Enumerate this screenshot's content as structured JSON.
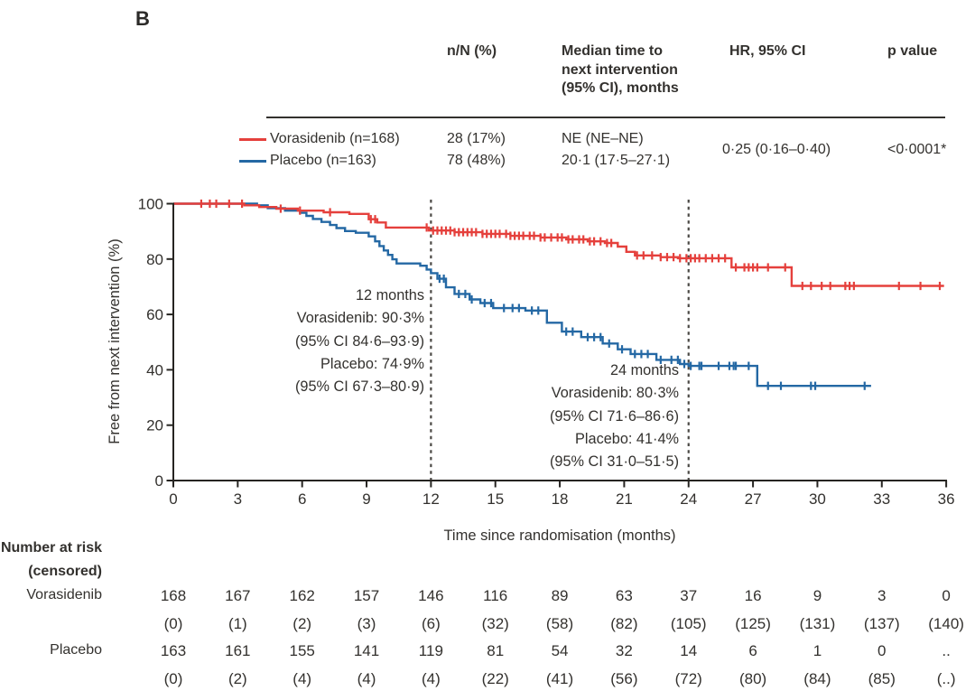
{
  "panel_label": "B",
  "colors": {
    "vorasidenib": "#e5403c",
    "placebo": "#2468a4",
    "text": "#33312e",
    "axis": "#262421",
    "dashed_line": "#4b4945"
  },
  "summary": {
    "col_nn": "n/N (%)",
    "col_median": [
      "Median time to",
      "next intervention",
      "(95% CI), months"
    ],
    "col_hr": "HR, 95% CI",
    "col_p": "p value",
    "rows": [
      {
        "label": "Vorasidenib (n=168)",
        "nn": "28 (17%)",
        "median": "NE (NE–NE)"
      },
      {
        "label": "Placebo (n=163)",
        "nn": "78 (48%)",
        "median": "20·1 (17·5–27·1)"
      }
    ],
    "hr_value": "0·25 (0·16–0·40)",
    "p_value": "<0·0001*"
  },
  "chart_data": {
    "type": "line",
    "subtype": "kaplan-meier-step",
    "title": "",
    "xlabel": "Time since randomisation (months)",
    "ylabel": "Free from next intervention (%)",
    "xlim": [
      0,
      36
    ],
    "ylim": [
      0,
      100
    ],
    "xticks": [
      0,
      3,
      6,
      9,
      12,
      15,
      18,
      21,
      24,
      27,
      30,
      33,
      36
    ],
    "yticks": [
      0,
      20,
      40,
      60,
      80,
      100
    ],
    "grid": false,
    "reference_lines_x": [
      12,
      24
    ],
    "series": [
      {
        "name": "Vorasidenib",
        "color": "#e5403c",
        "steps": [
          [
            0,
            100
          ],
          [
            3.3,
            100
          ],
          [
            3.3,
            99.4
          ],
          [
            4.0,
            99.4
          ],
          [
            4.0,
            98.8
          ],
          [
            4.8,
            98.8
          ],
          [
            4.8,
            98.2
          ],
          [
            5.8,
            98.2
          ],
          [
            5.8,
            97.5
          ],
          [
            7.0,
            97.5
          ],
          [
            7.0,
            96.9
          ],
          [
            8.2,
            96.9
          ],
          [
            8.2,
            96.3
          ],
          [
            9.1,
            96.3
          ],
          [
            9.1,
            94.4
          ],
          [
            9.5,
            94.4
          ],
          [
            9.5,
            93.2
          ],
          [
            9.9,
            93.2
          ],
          [
            9.9,
            91.4
          ],
          [
            11.9,
            91.4
          ],
          [
            11.9,
            90.3
          ],
          [
            13.1,
            90.3
          ],
          [
            13.1,
            89.7
          ],
          [
            14.4,
            89.7
          ],
          [
            14.4,
            89.1
          ],
          [
            15.7,
            89.1
          ],
          [
            15.7,
            88.4
          ],
          [
            17.1,
            88.4
          ],
          [
            17.1,
            87.8
          ],
          [
            18.3,
            87.8
          ],
          [
            18.3,
            87.1
          ],
          [
            19.3,
            87.1
          ],
          [
            19.3,
            86.4
          ],
          [
            20.1,
            86.4
          ],
          [
            20.1,
            85.8
          ],
          [
            20.7,
            85.8
          ],
          [
            20.7,
            84.5
          ],
          [
            21.1,
            84.5
          ],
          [
            21.1,
            82.6
          ],
          [
            21.5,
            82.6
          ],
          [
            21.5,
            81.3
          ],
          [
            22.7,
            81.3
          ],
          [
            22.7,
            80.7
          ],
          [
            23.5,
            80.7
          ],
          [
            23.5,
            80.3
          ],
          [
            26.0,
            80.3
          ],
          [
            26.0,
            77.0
          ],
          [
            28.8,
            77.0
          ],
          [
            28.8,
            70.3
          ],
          [
            35.9,
            70.3
          ]
        ],
        "censor_marks": [
          1.3,
          1.7,
          2.0,
          2.6,
          3.2,
          5.0,
          5.9,
          7.3,
          9.2,
          9.4,
          11.8,
          12.1,
          12.3,
          12.5,
          12.7,
          12.9,
          13.1,
          13.3,
          13.5,
          13.7,
          13.9,
          14.1,
          14.4,
          14.6,
          14.8,
          15.0,
          15.2,
          15.5,
          15.7,
          15.9,
          16.1,
          16.3,
          16.6,
          16.8,
          17.1,
          17.3,
          17.6,
          17.9,
          18.1,
          18.4,
          18.6,
          18.9,
          19.1,
          19.4,
          19.6,
          19.9,
          20.2,
          20.4,
          21.6,
          21.9,
          22.3,
          22.7,
          23.0,
          23.3,
          23.6,
          23.9,
          24.1,
          24.3,
          24.5,
          24.8,
          25.1,
          25.4,
          25.7,
          26.2,
          26.6,
          26.8,
          27.0,
          27.2,
          27.7,
          28.5,
          29.3,
          29.7,
          30.2,
          30.6,
          31.3,
          31.5,
          31.7,
          33.8,
          34.8,
          35.7
        ],
        "value_at_12_months": "90·3% (95% CI 84·6–93·9)",
        "value_at_24_months": "80·3% (95% CI 71·6–86·6)"
      },
      {
        "name": "Placebo",
        "color": "#2468a4",
        "steps": [
          [
            0,
            100
          ],
          [
            3.9,
            100
          ],
          [
            3.9,
            99.4
          ],
          [
            4.4,
            99.4
          ],
          [
            4.4,
            98.4
          ],
          [
            5.2,
            98.4
          ],
          [
            5.2,
            97.5
          ],
          [
            5.9,
            97.5
          ],
          [
            5.9,
            96.7
          ],
          [
            6.2,
            96.7
          ],
          [
            6.2,
            95.6
          ],
          [
            6.5,
            95.6
          ],
          [
            6.5,
            94.5
          ],
          [
            6.9,
            94.5
          ],
          [
            6.9,
            93.4
          ],
          [
            7.3,
            93.4
          ],
          [
            7.3,
            92.3
          ],
          [
            7.6,
            92.3
          ],
          [
            7.6,
            91.2
          ],
          [
            8.0,
            91.2
          ],
          [
            8.0,
            90.1
          ],
          [
            8.5,
            90.1
          ],
          [
            8.5,
            89.5
          ],
          [
            9.1,
            89.5
          ],
          [
            9.1,
            88.2
          ],
          [
            9.4,
            88.2
          ],
          [
            9.4,
            86.4
          ],
          [
            9.6,
            86.4
          ],
          [
            9.6,
            84.7
          ],
          [
            9.8,
            84.7
          ],
          [
            9.8,
            83.1
          ],
          [
            10.0,
            83.1
          ],
          [
            10.0,
            81.5
          ],
          [
            10.2,
            81.5
          ],
          [
            10.2,
            79.9
          ],
          [
            10.4,
            79.9
          ],
          [
            10.4,
            78.4
          ],
          [
            11.5,
            78.4
          ],
          [
            11.5,
            77.6
          ],
          [
            11.8,
            77.6
          ],
          [
            11.8,
            76.2
          ],
          [
            12.0,
            76.2
          ],
          [
            12.0,
            74.9
          ],
          [
            12.3,
            74.9
          ],
          [
            12.3,
            72.9
          ],
          [
            12.7,
            72.9
          ],
          [
            12.7,
            69.8
          ],
          [
            13.1,
            69.8
          ],
          [
            13.1,
            67.4
          ],
          [
            13.8,
            67.4
          ],
          [
            13.8,
            65.4
          ],
          [
            14.3,
            65.4
          ],
          [
            14.3,
            64.1
          ],
          [
            14.9,
            64.1
          ],
          [
            14.9,
            62.3
          ],
          [
            16.4,
            62.3
          ],
          [
            16.4,
            61.4
          ],
          [
            17.4,
            61.4
          ],
          [
            17.4,
            57.0
          ],
          [
            18.1,
            57.0
          ],
          [
            18.1,
            53.8
          ],
          [
            19.0,
            53.8
          ],
          [
            19.0,
            51.8
          ],
          [
            20.0,
            51.8
          ],
          [
            20.0,
            49.5
          ],
          [
            20.7,
            49.5
          ],
          [
            20.7,
            47.4
          ],
          [
            21.3,
            47.4
          ],
          [
            21.3,
            45.7
          ],
          [
            22.5,
            45.7
          ],
          [
            22.5,
            43.6
          ],
          [
            23.6,
            43.6
          ],
          [
            23.6,
            42.1
          ],
          [
            24.0,
            42.1
          ],
          [
            24.0,
            41.4
          ],
          [
            27.2,
            41.4
          ],
          [
            27.2,
            34.2
          ],
          [
            32.5,
            34.2
          ]
        ],
        "censor_marks": [
          12.4,
          12.6,
          13.3,
          13.6,
          13.9,
          14.5,
          14.8,
          15.4,
          15.8,
          16.1,
          16.7,
          17.0,
          18.3,
          18.6,
          19.3,
          19.6,
          19.9,
          20.3,
          20.9,
          21.5,
          21.8,
          22.1,
          22.7,
          23.2,
          23.5,
          23.8,
          24.1,
          24.5,
          24.6,
          25.4,
          25.9,
          26.1,
          26.2,
          26.8,
          27.7,
          28.3,
          29.7,
          29.9,
          32.2
        ],
        "value_at_12_months": "74·9% (95% CI 67·3–80·9)",
        "value_at_24_months": "41·4% (95% CI 31·0–51·5)"
      }
    ],
    "annotations": [
      {
        "id": "12-months",
        "lines": [
          "12 months",
          "Vorasidenib: 90·3%",
          "(95% CI 84·6–93·9)",
          "Placebo: 74·9%",
          "(95% CI 67·3–80·9)"
        ]
      },
      {
        "id": "24-months",
        "lines": [
          "24 months",
          "Vorasidenib: 80·3%",
          "(95% CI 71·6–86·6)",
          "Placebo: 41·4%",
          "(95% CI 31·0–51·5)"
        ]
      }
    ]
  },
  "risk_table": {
    "header": "Number at risk",
    "subheader": "(censored)",
    "timepoints": [
      0,
      3,
      6,
      9,
      12,
      15,
      18,
      21,
      24,
      27,
      30,
      33,
      36
    ],
    "rows": [
      {
        "label": "Vorasidenib",
        "counts": [
          "168",
          "167",
          "162",
          "157",
          "146",
          "116",
          "89",
          "63",
          "37",
          "16",
          "9",
          "3",
          "0"
        ],
        "censored": [
          "(0)",
          "(1)",
          "(2)",
          "(3)",
          "(6)",
          "(32)",
          "(58)",
          "(82)",
          "(105)",
          "(125)",
          "(131)",
          "(137)",
          "(140)"
        ]
      },
      {
        "label": "Placebo",
        "counts": [
          "163",
          "161",
          "155",
          "141",
          "119",
          "81",
          "54",
          "32",
          "14",
          "6",
          "1",
          "0",
          ".."
        ],
        "censored": [
          "(0)",
          "(2)",
          "(4)",
          "(4)",
          "(4)",
          "(22)",
          "(41)",
          "(56)",
          "(72)",
          "(80)",
          "(84)",
          "(85)",
          "(..)"
        ]
      }
    ]
  }
}
